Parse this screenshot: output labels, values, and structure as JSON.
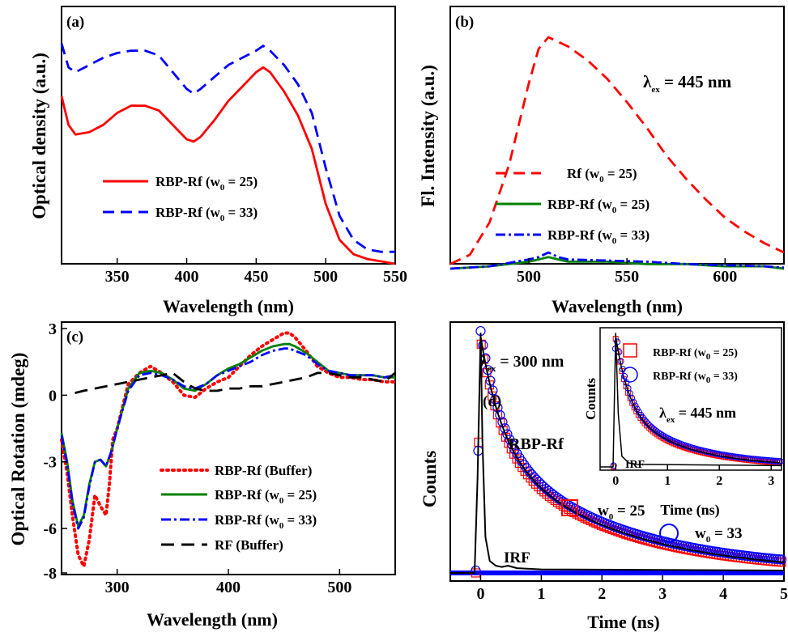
{
  "chart_data": [
    {
      "panel": "(a)",
      "type": "line",
      "xlabel": "Wavelength (nm)",
      "ylabel": "Optical density (a.u.)",
      "xlim": [
        310,
        550
      ],
      "ylim": [
        0,
        1
      ],
      "x_ticks": [
        "350",
        "400",
        "450",
        "500",
        "550"
      ],
      "y_ticks": [],
      "legend_position": "lower-left",
      "series": [
        {
          "name": "RBP-Rf (w0 = 25)",
          "color": "#ff0000",
          "dash": "solid",
          "x": [
            310,
            315,
            320,
            330,
            340,
            350,
            360,
            370,
            380,
            390,
            400,
            405,
            410,
            420,
            430,
            440,
            450,
            455,
            460,
            470,
            480,
            490,
            500,
            510,
            520,
            530,
            540,
            550
          ],
          "y": [
            0.7,
            0.58,
            0.54,
            0.55,
            0.58,
            0.63,
            0.66,
            0.66,
            0.64,
            0.58,
            0.52,
            0.51,
            0.53,
            0.6,
            0.68,
            0.74,
            0.8,
            0.82,
            0.8,
            0.72,
            0.62,
            0.48,
            0.25,
            0.1,
            0.04,
            0.02,
            0.01,
            0.0
          ]
        },
        {
          "name": "RBP-Rf (w0 = 33)",
          "color": "#0000ff",
          "dash": "dashed",
          "x": [
            310,
            315,
            320,
            330,
            340,
            350,
            360,
            370,
            380,
            390,
            400,
            405,
            410,
            420,
            430,
            440,
            450,
            455,
            460,
            470,
            480,
            490,
            500,
            510,
            520,
            530,
            540,
            550
          ],
          "y": [
            0.92,
            0.82,
            0.8,
            0.83,
            0.86,
            0.88,
            0.89,
            0.89,
            0.87,
            0.8,
            0.73,
            0.71,
            0.73,
            0.78,
            0.83,
            0.86,
            0.89,
            0.91,
            0.89,
            0.83,
            0.75,
            0.63,
            0.4,
            0.2,
            0.1,
            0.06,
            0.05,
            0.05
          ]
        }
      ]
    },
    {
      "panel": "(b)",
      "type": "line",
      "xlabel": "Wavelength (nm)",
      "ylabel": "Fl. Intensity (a.u.)",
      "annotation": {
        "main": "λ",
        "sub": "ex",
        "rest": " = 445 nm"
      },
      "xlim": [
        460,
        630
      ],
      "ylim": [
        0,
        1
      ],
      "x_ticks": [
        "500",
        "550",
        "600"
      ],
      "y_ticks": [],
      "legend_position": "lower-left",
      "series": [
        {
          "name": "Rf (w0 = 25)",
          "color": "#ff0000",
          "dash": "dashed",
          "x": [
            460,
            470,
            480,
            490,
            500,
            505,
            510,
            515,
            520,
            525,
            530,
            540,
            550,
            560,
            570,
            580,
            590,
            600,
            610,
            620,
            630
          ],
          "y": [
            0.02,
            0.06,
            0.2,
            0.45,
            0.8,
            0.95,
            1.0,
            0.98,
            0.96,
            0.93,
            0.9,
            0.82,
            0.72,
            0.61,
            0.49,
            0.39,
            0.3,
            0.22,
            0.16,
            0.11,
            0.07
          ]
        },
        {
          "name": "RBP-Rf (w0 = 25)",
          "color": "#008000",
          "dash": "solid",
          "x": [
            460,
            480,
            500,
            505,
            510,
            515,
            520,
            540,
            560,
            580,
            600,
            620,
            630
          ],
          "y": [
            0.0,
            0.01,
            0.03,
            0.04,
            0.05,
            0.04,
            0.03,
            0.03,
            0.02,
            0.02,
            0.01,
            0.01,
            0.0
          ]
        },
        {
          "name": "RBP-Rf (w0 = 33)",
          "color": "#0000ff",
          "dash": "dashdot",
          "x": [
            460,
            480,
            500,
            505,
            510,
            515,
            520,
            540,
            560,
            580,
            600,
            620,
            630
          ],
          "y": [
            0.0,
            0.01,
            0.04,
            0.05,
            0.07,
            0.05,
            0.04,
            0.035,
            0.03,
            0.02,
            0.015,
            0.01,
            0.005
          ]
        }
      ]
    },
    {
      "panel": "(c)",
      "type": "line",
      "xlabel": "Wavelength (nm)",
      "ylabel": "Optical Rotation (mdeg)",
      "xlim": [
        250,
        550
      ],
      "ylim": [
        -8,
        3
      ],
      "x_ticks": [
        "300",
        "400",
        "500"
      ],
      "y_ticks": [
        "3",
        "0",
        "-3",
        "-6",
        "-8"
      ],
      "legend_position": "lower-right",
      "series": [
        {
          "name": "RBP-Rf (Buffer)",
          "color": "#ff0000",
          "dash": "dotted",
          "x": [
            250,
            255,
            260,
            265,
            270,
            275,
            280,
            285,
            290,
            293,
            296,
            300,
            310,
            320,
            330,
            340,
            350,
            360,
            370,
            380,
            390,
            400,
            410,
            420,
            430,
            440,
            450,
            455,
            460,
            470,
            480,
            490,
            500,
            510,
            520,
            530,
            540,
            550
          ],
          "y": [
            -2.0,
            -3.5,
            -5.5,
            -7.2,
            -7.7,
            -6.5,
            -4.5,
            -5.0,
            -5.4,
            -4.0,
            -2.0,
            -1.5,
            0.5,
            1.0,
            1.3,
            1.0,
            0.6,
            0.0,
            -0.1,
            0.3,
            0.6,
            0.8,
            1.3,
            1.8,
            2.2,
            2.5,
            2.8,
            2.8,
            2.6,
            2.0,
            1.3,
            1.0,
            0.8,
            0.8,
            0.7,
            0.7,
            0.6,
            0.6
          ]
        },
        {
          "name": "RBP-Rf (w0 = 25)",
          "color": "#008000",
          "dash": "solid",
          "x": [
            250,
            255,
            260,
            265,
            270,
            275,
            280,
            285,
            290,
            295,
            300,
            310,
            320,
            330,
            340,
            350,
            360,
            370,
            380,
            390,
            400,
            410,
            420,
            430,
            440,
            450,
            455,
            460,
            470,
            480,
            490,
            500,
            510,
            520,
            530,
            540,
            550
          ],
          "y": [
            -1.7,
            -3.0,
            -4.8,
            -5.9,
            -5.4,
            -4.0,
            -3.0,
            -2.9,
            -3.2,
            -2.5,
            -1.5,
            0.3,
            1.0,
            1.1,
            1.0,
            0.7,
            0.3,
            0.2,
            0.5,
            0.9,
            1.2,
            1.4,
            1.7,
            2.0,
            2.2,
            2.3,
            2.3,
            2.2,
            1.9,
            1.5,
            1.1,
            1.0,
            0.9,
            0.9,
            0.9,
            0.8,
            0.8
          ]
        },
        {
          "name": "RBP-Rf (w0 = 33)",
          "color": "#0000ff",
          "dash": "dashdot",
          "x": [
            250,
            255,
            260,
            265,
            270,
            275,
            280,
            285,
            290,
            295,
            300,
            310,
            320,
            330,
            340,
            350,
            360,
            370,
            380,
            390,
            400,
            410,
            420,
            430,
            440,
            450,
            455,
            460,
            470,
            480,
            490,
            500,
            510,
            520,
            530,
            540,
            550
          ],
          "y": [
            -1.8,
            -3.1,
            -4.9,
            -6.0,
            -5.5,
            -4.1,
            -3.0,
            -2.9,
            -3.2,
            -2.5,
            -1.5,
            0.2,
            0.9,
            1.0,
            0.9,
            0.7,
            0.4,
            0.3,
            0.5,
            0.9,
            1.1,
            1.3,
            1.5,
            1.8,
            2.0,
            2.1,
            2.1,
            2.0,
            1.8,
            1.4,
            1.1,
            1.0,
            0.9,
            0.9,
            0.9,
            0.8,
            0.9
          ]
        },
        {
          "name": "RF (Buffer)",
          "color": "#000000",
          "dash": "longdash",
          "x": [
            262,
            270,
            280,
            290,
            300,
            310,
            320,
            330,
            340,
            350,
            360,
            370,
            380,
            390,
            400,
            410,
            420,
            430,
            440,
            450,
            460,
            470,
            480,
            490,
            500,
            510,
            520,
            530,
            540,
            550
          ],
          "y": [
            0.1,
            0.2,
            0.3,
            0.4,
            0.5,
            0.6,
            0.7,
            0.8,
            0.9,
            1.0,
            0.6,
            0.3,
            0.2,
            0.2,
            0.3,
            0.3,
            0.4,
            0.4,
            0.5,
            0.6,
            0.7,
            0.8,
            1.0,
            1.0,
            0.9,
            0.8,
            0.8,
            0.7,
            0.6,
            1.0
          ]
        }
      ]
    },
    {
      "panel": "(d)",
      "type": "scatter",
      "xlabel": "Time (ns)",
      "ylabel": "Counts",
      "xlim": [
        -0.5,
        5
      ],
      "ylim": [
        0,
        1
      ],
      "x_ticks": [
        "0",
        "1",
        "2",
        "3",
        "4",
        "5"
      ],
      "y_ticks": [],
      "annotation": {
        "main": "λ",
        "sub": "ex",
        "rest": " = 300 nm"
      },
      "labels": {
        "rbp": "RBP-Rf",
        "irf": "IRF",
        "w25_main": "w",
        "w25_sub": "0",
        "w25_rest": " = 25",
        "w33_main": "w",
        "w33_sub": "0",
        "w33_rest": " = 33"
      },
      "series": [
        {
          "name": "w0 = 25",
          "color": "#ff0000",
          "marker": "square"
        },
        {
          "name": "w0 = 33",
          "color": "#0000ff",
          "marker": "circle"
        },
        {
          "name": "IRF",
          "color": "#000000",
          "marker": "line",
          "x": [
            -0.5,
            -0.1,
            -0.05,
            0.0,
            0.03,
            0.08,
            0.15,
            0.25,
            0.35,
            0.45,
            0.6,
            1.0,
            5.0
          ],
          "y": [
            0.0,
            0.0,
            0.4,
            1.0,
            0.55,
            0.15,
            0.05,
            0.03,
            0.025,
            0.03,
            0.02,
            0.015,
            0.01
          ]
        }
      ],
      "decay_model": {
        "amplitudes": [
          0.45,
          0.55
        ],
        "lifetimes_ns": [
          0.35,
          2.0
        ],
        "rise_start": -0.08,
        "peak": 0.0
      },
      "inset": {
        "type": "scatter",
        "xlabel": "Time (ns)",
        "ylabel": "Counts",
        "xlim": [
          -0.3,
          3.2
        ],
        "x_ticks": [
          "0",
          "1",
          "2",
          "3"
        ],
        "annotation": {
          "main": "λ",
          "sub": "ex",
          "rest": " = 445 nm"
        },
        "legend": [
          {
            "name": "RBP-Rf (w",
            "sub": "0",
            "rest": " = 25)",
            "color": "#ff0000",
            "marker": "square"
          },
          {
            "name": "RBP-Rf (w",
            "sub": "0",
            "rest": " = 33)",
            "color": "#0000ff",
            "marker": "circle"
          }
        ],
        "irf_label": "IRF"
      }
    }
  ]
}
